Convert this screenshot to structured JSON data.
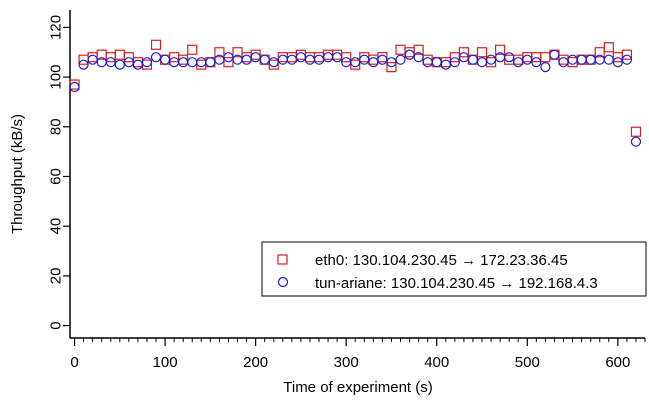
{
  "chart_data": {
    "type": "scatter",
    "title": "",
    "xlabel": "Time of experiment (s)",
    "ylabel": "Throughput (kB/s)",
    "xlim": [
      -5,
      630
    ],
    "ylim": [
      -5,
      127
    ],
    "x_ticks": [
      0,
      100,
      200,
      300,
      400,
      500,
      600
    ],
    "y_ticks": [
      0,
      20,
      40,
      60,
      80,
      100,
      120
    ],
    "x_minor_step": 10,
    "grid": false,
    "legend_position": "bottom-right",
    "series": [
      {
        "name": "eth0: 130.104.230.45 → 172.23.36.45",
        "marker": "square",
        "color": "#d81e1e",
        "x": [
          0,
          10,
          20,
          30,
          40,
          50,
          60,
          70,
          80,
          90,
          100,
          110,
          120,
          130,
          140,
          150,
          160,
          170,
          180,
          190,
          200,
          210,
          220,
          230,
          240,
          250,
          260,
          270,
          280,
          290,
          300,
          310,
          320,
          330,
          340,
          350,
          360,
          370,
          380,
          390,
          400,
          410,
          420,
          430,
          440,
          450,
          460,
          470,
          480,
          490,
          500,
          510,
          520,
          530,
          540,
          550,
          560,
          570,
          580,
          590,
          600,
          610,
          620
        ],
        "y": [
          97,
          107,
          108,
          109,
          108,
          109,
          108,
          106,
          105,
          113,
          107,
          108,
          107,
          111,
          105,
          106,
          110,
          106,
          110,
          108,
          109,
          107,
          105,
          108,
          108,
          109,
          108,
          108,
          109,
          109,
          108,
          105,
          108,
          107,
          108,
          104,
          111,
          110,
          111,
          107,
          106,
          106,
          108,
          110,
          107,
          110,
          106,
          111,
          107,
          107,
          108,
          108,
          108,
          109,
          107,
          106,
          107,
          107,
          110,
          112,
          108,
          109,
          78
        ]
      },
      {
        "name": "tun-ariane: 130.104.230.45 → 192.168.4.3",
        "marker": "circle",
        "color": "#1c1ccf",
        "x": [
          0,
          10,
          20,
          30,
          40,
          50,
          60,
          70,
          80,
          90,
          100,
          110,
          120,
          130,
          140,
          150,
          160,
          170,
          180,
          190,
          200,
          210,
          220,
          230,
          240,
          250,
          260,
          270,
          280,
          290,
          300,
          310,
          320,
          330,
          340,
          350,
          360,
          370,
          380,
          390,
          400,
          410,
          420,
          430,
          440,
          450,
          460,
          470,
          480,
          490,
          500,
          510,
          520,
          530,
          540,
          550,
          560,
          570,
          580,
          590,
          600,
          610,
          620
        ],
        "y": [
          96,
          105,
          107,
          106,
          106,
          105,
          106,
          105,
          106,
          108,
          107,
          106,
          106,
          106,
          106,
          106,
          107,
          108,
          107,
          107,
          108,
          107,
          106,
          107,
          107,
          108,
          107,
          107,
          108,
          108,
          106,
          106,
          107,
          106,
          107,
          106,
          107,
          109,
          108,
          106,
          106,
          105,
          106,
          108,
          107,
          106,
          107,
          108,
          108,
          106,
          107,
          106,
          104,
          109,
          106,
          107,
          107,
          107,
          107,
          107,
          106,
          107,
          74
        ]
      }
    ]
  }
}
